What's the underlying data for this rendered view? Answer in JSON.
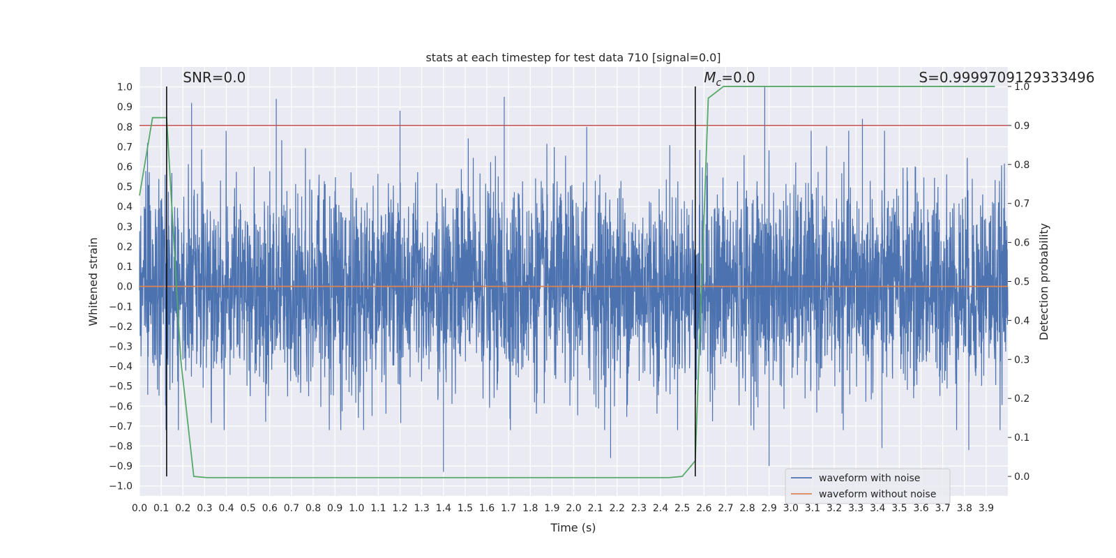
{
  "chart_data": {
    "type": "line",
    "title": "stats at each timestep for test data 710 [signal=0.0]",
    "xlabel": "Time (s)",
    "ylabel": "Whitened strain",
    "ylabel_right": "Detection probability",
    "xlim": [
      0.0,
      4.0
    ],
    "ylim": [
      -1.05,
      1.1
    ],
    "ylim_right": [
      -0.05,
      1.05
    ],
    "x_ticks": [
      "0.0",
      "0.1",
      "0.2",
      "0.3",
      "0.4",
      "0.5",
      "0.6",
      "0.7",
      "0.8",
      "0.9",
      "1.0",
      "1.1",
      "1.2",
      "1.3",
      "1.4",
      "1.5",
      "1.6",
      "1.7",
      "1.8",
      "1.9",
      "2.0",
      "2.1",
      "2.2",
      "2.3",
      "2.4",
      "2.5",
      "2.6",
      "2.7",
      "2.8",
      "2.9",
      "3.0",
      "3.1",
      "3.2",
      "3.3",
      "3.4",
      "3.5",
      "3.6",
      "3.7",
      "3.8",
      "3.9"
    ],
    "y_ticks": [
      "1.0",
      "0.9",
      "0.8",
      "0.7",
      "0.6",
      "0.5",
      "0.4",
      "0.3",
      "0.2",
      "0.1",
      "0.0",
      "−0.1",
      "−0.2",
      "−0.3",
      "−0.4",
      "−0.5",
      "−0.6",
      "−0.7",
      "−0.8",
      "−0.9",
      "−1.0"
    ],
    "y_ticks_right": [
      "1.0",
      "0.9",
      "0.8",
      "0.7",
      "0.6",
      "0.5",
      "0.4",
      "0.3",
      "0.2",
      "0.1",
      "0.0"
    ],
    "grid": true,
    "legend_position": "lower-right",
    "series": [
      {
        "name": "waveform with noise",
        "color": "#4c72b0",
        "axis": "left",
        "noise_std": 0.25,
        "noise_seed": 710,
        "spikes": [
          [
            0.24,
            0.92
          ],
          [
            0.63,
            0.94
          ],
          [
            1.2,
            0.88
          ],
          [
            1.4,
            -0.93
          ],
          [
            1.68,
            0.95
          ],
          [
            2.06,
            0.8
          ],
          [
            2.17,
            -0.86
          ],
          [
            2.88,
            1.0
          ],
          [
            2.9,
            -0.9
          ],
          [
            3.33,
            0.84
          ],
          [
            3.42,
            -0.81
          ],
          [
            3.82,
            -0.82
          ]
        ]
      },
      {
        "name": "waveform without noise",
        "color": "#dd8452",
        "axis": "left",
        "x": [
          0.0,
          4.0
        ],
        "y": [
          0.0,
          0.0
        ]
      },
      {
        "name": "Detection probability",
        "color": "#55a868",
        "axis": "right",
        "x": [
          0.0,
          0.06,
          0.125,
          0.19,
          0.25,
          0.31,
          0.375,
          1.0,
          2.0,
          2.44,
          2.5,
          2.56,
          2.62,
          2.69,
          2.75,
          3.0,
          3.5,
          3.94
        ],
        "y": [
          0.72,
          0.92,
          0.92,
          0.3,
          0.0,
          -0.003,
          -0.003,
          -0.003,
          -0.003,
          -0.003,
          0.0,
          0.04,
          0.97,
          1.0,
          1.0,
          1.0,
          1.0,
          1.0
        ]
      }
    ],
    "threshold": {
      "value": 0.9,
      "axis": "right",
      "color": "#c44e52"
    },
    "vlines": [
      {
        "x": 0.125,
        "ymin": 0.0,
        "ymax": 1.0,
        "color": "#000000"
      },
      {
        "x": 2.56,
        "ymin": 0.0,
        "ymax": 1.0,
        "color": "#000000"
      }
    ],
    "annotations": [
      {
        "text": "SNR=0.0",
        "x": 0.2,
        "y": 1.0,
        "axis": "right"
      },
      {
        "text_main": "M",
        "text_sub": "c",
        "text_rest": "=0.0",
        "x": 2.6,
        "y": 1.0,
        "axis": "right"
      },
      {
        "text": "S=0.9999709129333496",
        "x": 3.59,
        "y": 1.0,
        "axis": "right"
      }
    ]
  }
}
